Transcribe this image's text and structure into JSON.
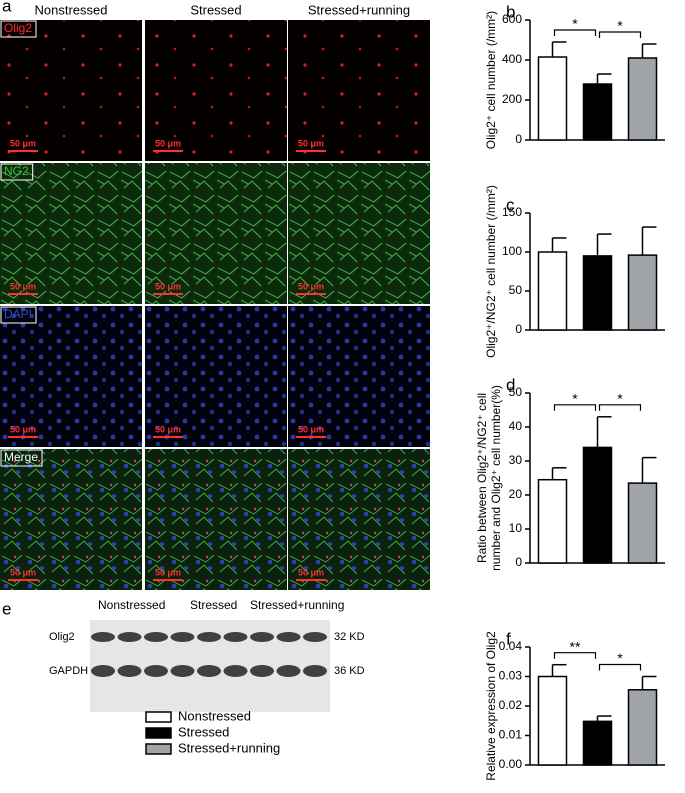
{
  "microscopy": {
    "label": "a",
    "columns": [
      "Nonstressed",
      "Stressed",
      "Stressed+running"
    ],
    "rows": [
      {
        "name": "Olig2",
        "color": "#ff3030"
      },
      {
        "name": "NG2",
        "color": "#40c040"
      },
      {
        "name": "DAPI",
        "color": "#3050c0"
      },
      {
        "name": "Merge",
        "color": "#ffffff"
      }
    ],
    "scale_bar": "50 μm"
  },
  "western_blot": {
    "label": "e",
    "groups": [
      "Nonstressed",
      "Stressed",
      "Stressed+running"
    ],
    "bands": [
      {
        "name": "Olig2",
        "size": "32 KD"
      },
      {
        "name": "GAPDH",
        "size": "36 KD"
      }
    ]
  },
  "legend": [
    {
      "name": "Nonstressed",
      "color": "#ffffff"
    },
    {
      "name": "Stressed",
      "color": "#000000"
    },
    {
      "name": "Stressed+running",
      "color": "#a0a4a8"
    }
  ],
  "chart_data": [
    {
      "type": "bar",
      "label": "b",
      "ylabel": "Olig2⁺ cell number (/mm²)",
      "categories": [
        null,
        null,
        null
      ],
      "values": [
        415,
        280,
        410
      ],
      "errors": [
        75,
        50,
        70
      ],
      "colors": [
        "#ffffff",
        "#000000",
        "#a0a4a8"
      ],
      "ylim": [
        0,
        600
      ],
      "yticks": [
        0,
        200,
        400,
        600
      ],
      "brackets": [
        {
          "from": 0,
          "to": 1,
          "label": "*"
        },
        {
          "from": 1,
          "to": 2,
          "label": "*"
        }
      ]
    },
    {
      "type": "bar",
      "label": "c",
      "ylabel": "Olig2⁺/NG2⁺ cell number (/mm²)",
      "categories": [
        null,
        null,
        null
      ],
      "values": [
        100,
        95,
        96
      ],
      "errors": [
        18,
        28,
        36
      ],
      "colors": [
        "#ffffff",
        "#000000",
        "#a0a4a8"
      ],
      "ylim": [
        0,
        150
      ],
      "yticks": [
        0,
        50,
        100,
        150
      ],
      "brackets": []
    },
    {
      "type": "bar",
      "label": "d",
      "ylabel": [
        "Ratio between Olig2⁺/NG2⁺ cell",
        "number and Olig2⁺ cell number(%)"
      ],
      "categories": [
        null,
        null,
        null
      ],
      "values": [
        24.5,
        34,
        23.5
      ],
      "errors": [
        3.5,
        9,
        7.5
      ],
      "colors": [
        "#ffffff",
        "#000000",
        "#a0a4a8"
      ],
      "ylim": [
        0,
        50
      ],
      "yticks": [
        0,
        10,
        20,
        30,
        40,
        50
      ],
      "brackets": [
        {
          "from": 0,
          "to": 1,
          "label": "*"
        },
        {
          "from": 1,
          "to": 2,
          "label": "*"
        }
      ]
    },
    {
      "type": "bar",
      "label": "f",
      "ylabel": "Relative expression of Olig2",
      "categories": [
        null,
        null,
        null
      ],
      "values": [
        0.03,
        0.0148,
        0.0255
      ],
      "errors": [
        0.004,
        0.0018,
        0.0045
      ],
      "colors": [
        "#ffffff",
        "#000000",
        "#a0a4a8"
      ],
      "ylim": [
        0,
        0.04
      ],
      "yticks": [
        {
          "value": 0,
          "label": "0.00"
        },
        0.01,
        0.02,
        0.03,
        0.04
      ],
      "brackets": [
        {
          "from": 0,
          "to": 1,
          "label": "**"
        },
        {
          "from": 1,
          "to": 2,
          "label": "*"
        }
      ]
    }
  ]
}
